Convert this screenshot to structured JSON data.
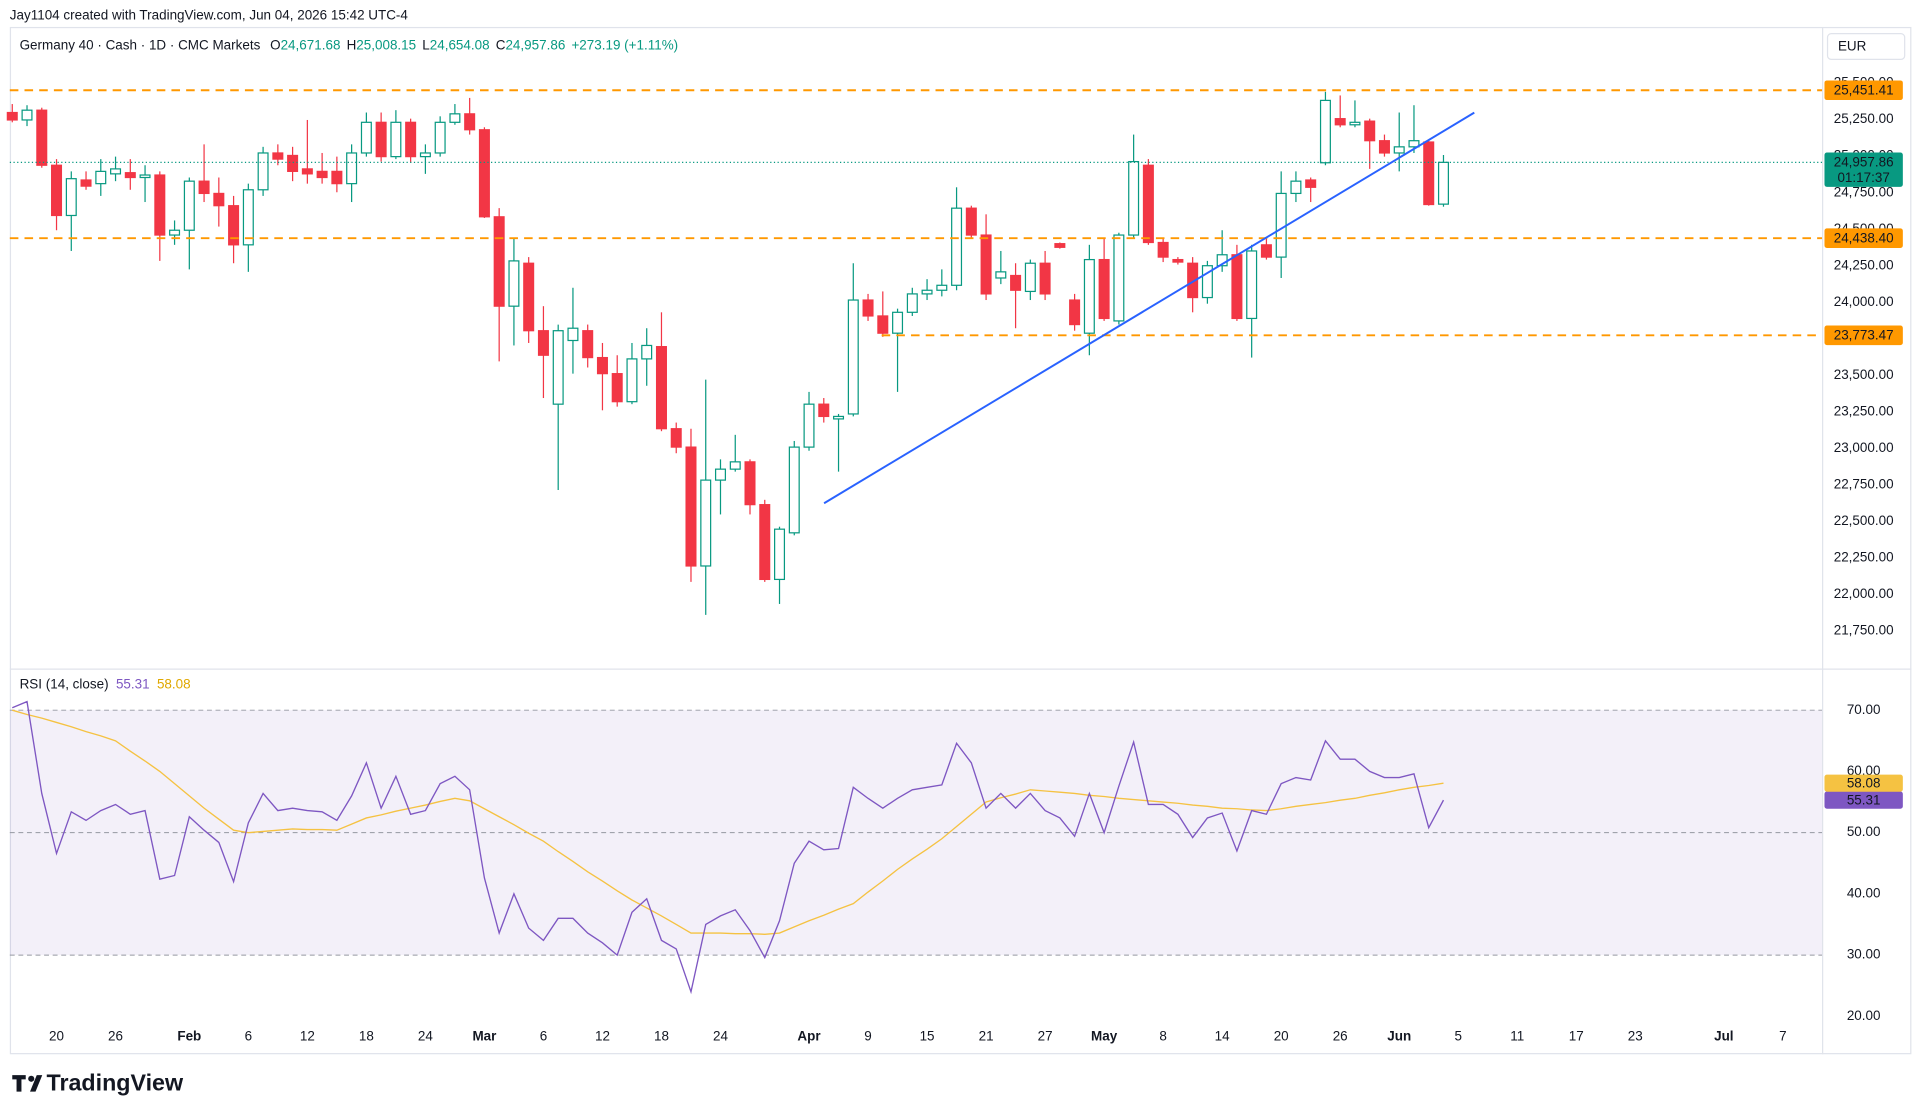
{
  "header": {
    "credit": "Jay1104 created with TradingView.com, Jun 04, 2026 15:42 UTC-4",
    "symbol": "Germany 40 · Cash · 1D · CMC Markets",
    "ohlc": [
      {
        "key": "O",
        "value": "24,671.68"
      },
      {
        "key": "H",
        "value": "25,008.15"
      },
      {
        "key": "L",
        "value": "24,654.08"
      },
      {
        "key": "C",
        "value": "24,957.86"
      }
    ],
    "change": "+273.19 (+1.11%)",
    "currency": "EUR"
  },
  "price_lines": [
    {
      "value": 25451.41,
      "label": "25,451.41",
      "color": "#ff9800"
    },
    {
      "value": 24438.4,
      "label": "24,438.40",
      "color": "#ff9800"
    },
    {
      "value": 23773.47,
      "label": "23,773.47",
      "color": "#ff9800"
    }
  ],
  "last_price": {
    "value": 24957.86,
    "label": "24,957.86",
    "countdown": "01:17:37",
    "color": "#089981"
  },
  "brand": "TradingView",
  "chart_data": [
    {
      "type": "candlestick",
      "categories": [
        null,
        null,
        null,
        "20",
        null,
        null,
        null,
        "26",
        null,
        null,
        null,
        null,
        "Feb",
        null,
        null,
        null,
        "6",
        null,
        null,
        null,
        "12",
        null,
        null,
        null,
        "18",
        null,
        null,
        null,
        "24",
        null,
        null,
        null,
        "Mar",
        null,
        null,
        null,
        "6",
        null,
        null,
        null,
        "12",
        null,
        null,
        null,
        "18",
        null,
        null,
        null,
        "24",
        null,
        null,
        null,
        null,
        null,
        "Apr",
        null,
        null,
        null,
        "9",
        null,
        null,
        null,
        "15",
        null,
        null,
        null,
        "21",
        null,
        null,
        null,
        "27",
        null,
        null,
        null,
        "May",
        null,
        null,
        null,
        "8",
        null,
        null,
        null,
        "14",
        null,
        null,
        null,
        "20",
        null,
        null,
        null,
        "26",
        null,
        null,
        null,
        "Jun",
        null,
        null,
        null,
        "5",
        null,
        null,
        null,
        "11",
        null,
        null,
        null,
        "17",
        null,
        null,
        null,
        "23",
        null,
        null,
        null,
        null,
        null,
        "Jul",
        null,
        null,
        null,
        "7",
        null,
        null
      ],
      "open": [
        25299,
        25248,
        25315,
        24938,
        24594,
        24837,
        24812,
        24879,
        24887,
        24854,
        24871,
        24460,
        24493,
        24829,
        24745,
        24661,
        24393,
        24770,
        25022,
        25005,
        24913,
        24896,
        24896,
        24812,
        25022,
        25232,
        24997,
        25232,
        24997,
        25022,
        25232,
        25290,
        25181,
        24585,
        23973,
        24267,
        23805,
        23302,
        23738,
        23805,
        23621,
        23511,
        23319,
        23612,
        23696,
        23134,
        23008,
        22194,
        22782,
        22857,
        22907,
        22614,
        22102,
        22421,
        23008,
        23302,
        23201,
        23235,
        24015,
        23906,
        23788,
        23931,
        24057,
        24082,
        24116,
        24644,
        24460,
        24166,
        24183,
        24074,
        24267,
        24401,
        24015,
        23788,
        24292,
        23872,
        24460,
        24938,
        24409,
        24292,
        24267,
        24032,
        24250,
        24325,
        23889,
        24393,
        24309,
        24745,
        24837,
        24955,
        25257,
        25215,
        25240,
        25106,
        25022,
        25064,
        25097,
        24671.68,
        null,
        null,
        null,
        null,
        null,
        null,
        null,
        null,
        null,
        null,
        null,
        null,
        null,
        null,
        null,
        null,
        null,
        null,
        null,
        null,
        null,
        null,
        null,
        null,
        null
      ],
      "high": [
        25357,
        25349,
        25332,
        24980,
        24896,
        24896,
        24980,
        24997,
        24980,
        24938,
        24896,
        24560,
        24854,
        25081,
        24854,
        24728,
        24812,
        25064,
        25081,
        25064,
        25248,
        25022,
        24997,
        25081,
        25299,
        25299,
        25315,
        25257,
        25081,
        25273,
        25357,
        25399,
        25198,
        24644,
        24434,
        24309,
        23973,
        23847,
        24099,
        23847,
        23721,
        23637,
        23721,
        23822,
        23931,
        23176,
        23134,
        23470,
        22924,
        23092,
        22924,
        22647,
        22463,
        23050,
        23386,
        23344,
        23235,
        24267,
        24057,
        24074,
        23956,
        24099,
        24158,
        24225,
        24787,
        24661,
        24602,
        24351,
        24267,
        24292,
        24351,
        24409,
        24057,
        24393,
        24434,
        24476,
        25148,
        24980,
        24434,
        24309,
        24309,
        24283,
        24493,
        24393,
        24393,
        24434,
        24896,
        24896,
        24854,
        25441,
        25416,
        25382,
        25257,
        25148,
        25299,
        25349,
        25114,
        25008.15,
        null,
        null,
        null,
        null,
        null,
        null,
        null,
        null,
        null,
        null,
        null,
        null,
        null,
        null,
        null,
        null,
        null,
        null,
        null,
        null,
        null,
        null,
        null,
        null,
        null
      ],
      "low": [
        25232,
        25206,
        24921,
        24493,
        24351,
        24770,
        24728,
        24829,
        24770,
        24686,
        24283,
        24393,
        24225,
        24686,
        24518,
        24267,
        24208,
        24728,
        24938,
        24829,
        24812,
        24812,
        24753,
        24686,
        24997,
        24963,
        24980,
        24955,
        24879,
        24997,
        25215,
        25148,
        24577,
        23595,
        23704,
        23721,
        23344,
        22714,
        23511,
        23553,
        23260,
        23285,
        23302,
        23428,
        23117,
        22966,
        22085,
        21859,
        22547,
        22840,
        22547,
        22085,
        21934,
        22404,
        22983,
        23176,
        22840,
        23218,
        23872,
        23763,
        23386,
        23906,
        24015,
        24040,
        24082,
        24434,
        24015,
        24124,
        23822,
        24015,
        24015,
        24367,
        23805,
        23637,
        23872,
        23847,
        24434,
        24393,
        24275,
        24258,
        23931,
        23990,
        24208,
        23872,
        23621,
        24292,
        24166,
        24686,
        24686,
        24938,
        25198,
        25198,
        24913,
        24997,
        24896,
        25022,
        24661,
        24654.08,
        null,
        null,
        null,
        null,
        null,
        null,
        null,
        null,
        null,
        null,
        null,
        null,
        null,
        null,
        null,
        null,
        null,
        null,
        null,
        null,
        null,
        null,
        null,
        null,
        null
      ],
      "close": [
        25248,
        25315,
        24938,
        24594,
        24846,
        24795,
        24896,
        24913,
        24854,
        24871,
        24460,
        24493,
        24829,
        24745,
        24661,
        24393,
        24770,
        25022,
        24980,
        24896,
        24879,
        24854,
        24812,
        25022,
        25232,
        24997,
        25232,
        24997,
        25022,
        25232,
        25290,
        25181,
        24585,
        23973,
        24283,
        23805,
        23637,
        23805,
        23822,
        23621,
        23511,
        23319,
        23612,
        23704,
        23134,
        23008,
        22194,
        22782,
        22857,
        22907,
        22614,
        22102,
        22446,
        23008,
        23302,
        23218,
        23218,
        24015,
        23906,
        23788,
        23931,
        24057,
        24082,
        24116,
        24644,
        24460,
        24057,
        24208,
        24082,
        24267,
        24057,
        24376,
        23847,
        24292,
        23889,
        24460,
        24963,
        24409,
        24309,
        24275,
        24032,
        24250,
        24325,
        23889,
        24351,
        24309,
        24745,
        24829,
        24787,
        25382,
        25215,
        25232,
        25106,
        25022,
        25064,
        25106,
        24669,
        24957.86,
        null,
        null,
        null,
        null,
        null,
        null,
        null,
        null,
        null,
        null,
        null,
        null,
        null,
        null,
        null,
        null,
        null,
        null,
        null,
        null,
        null,
        null,
        null,
        null,
        null
      ],
      "up_color": "#089981",
      "down_color": "#f23645",
      "ylim": [
        21500,
        25885
      ],
      "yticks": [
        {
          "value": 25500,
          "label": "25,500.00"
        },
        {
          "value": 25250,
          "label": "25,250.00"
        },
        {
          "value": 25000,
          "label": "25,000.00"
        },
        {
          "value": 24750,
          "label": "24,750.00"
        },
        {
          "value": 24500,
          "label": "24,500.00"
        },
        {
          "value": 24250,
          "label": "24,250.00"
        },
        {
          "value": 24000,
          "label": "24,000.00"
        },
        {
          "value": 23750,
          "label": "23,750.00"
        },
        {
          "value": 23500,
          "label": "23,500.00"
        },
        {
          "value": 23250,
          "label": "23,250.00"
        },
        {
          "value": 23000,
          "label": "23,000.00"
        },
        {
          "value": 22750,
          "label": "22,750.00"
        },
        {
          "value": 22500,
          "label": "22,500.00"
        },
        {
          "value": 22250,
          "label": "22,250.00"
        },
        {
          "value": 22000,
          "label": "22,000.00"
        },
        {
          "value": 21750,
          "label": "21,750.00"
        }
      ],
      "grid": false
    },
    {
      "type": "line",
      "title": "RSI (14, close)",
      "series": [
        {
          "legend_label": "55.31",
          "color": "#7e57c2",
          "values": [
            70.4,
            71.4,
            56.4,
            46.6,
            53.4,
            52,
            53.6,
            54.6,
            53,
            53.6,
            42.4,
            43,
            52.6,
            50.4,
            48.4,
            42,
            51.6,
            56.4,
            53.6,
            54,
            53.6,
            53.4,
            52,
            56,
            61.4,
            54,
            59.2,
            53,
            53.6,
            58,
            59.2,
            57,
            42.6,
            33.6,
            40,
            34.4,
            32.4,
            36,
            36,
            33.6,
            32,
            30,
            37,
            39.2,
            32.4,
            31,
            24,
            35,
            36.4,
            37.4,
            34,
            29.6,
            35.6,
            45,
            48.6,
            47.2,
            47.4,
            57.4,
            55.6,
            54,
            55.6,
            57,
            57.4,
            57.8,
            64.6,
            61.4,
            54,
            56.4,
            54,
            56.4,
            53.6,
            52.4,
            49.4,
            56.4,
            50,
            57.6,
            64.8,
            54.6,
            54.6,
            53,
            49.2,
            52.4,
            53.2,
            47,
            53.6,
            53,
            58,
            59,
            58.6,
            65,
            62,
            62,
            60,
            59,
            59,
            59.6,
            50.8,
            55.31,
            null,
            null,
            null,
            null,
            null,
            null,
            null,
            null,
            null,
            null,
            null,
            null,
            null,
            null,
            null,
            null,
            null,
            null,
            null,
            null,
            null,
            null,
            null,
            null,
            null
          ]
        },
        {
          "legend_label": "58.08",
          "color": "#f5c242",
          "values": [
            70,
            69.3,
            68.7,
            68,
            67.3,
            66.5,
            65.8,
            65,
            63.3,
            61.7,
            60,
            58,
            56,
            54,
            52.2,
            50.4,
            50,
            50.2,
            50.4,
            50.6,
            50.5,
            50.5,
            50.4,
            51.4,
            52.4,
            52.9,
            53.5,
            54,
            54.5,
            55.1,
            55.6,
            55.2,
            53.9,
            52.6,
            51.3,
            49.9,
            48.6,
            46.9,
            45.3,
            43.6,
            42.1,
            40.5,
            39,
            37.7,
            36.4,
            35,
            33.6,
            33.6,
            33.6,
            33.5,
            33.5,
            33.4,
            33.6,
            34.6,
            35.6,
            36.5,
            37.5,
            38.4,
            40.3,
            42.1,
            44,
            45.7,
            47.3,
            49,
            51,
            53,
            55,
            55.7,
            56.3,
            57,
            56.8,
            56.6,
            56.4,
            56.1,
            55.9,
            55.6,
            55.4,
            55.2,
            55,
            54.8,
            54.5,
            54.3,
            54,
            53.9,
            53.7,
            53.6,
            53.9,
            54.3,
            54.6,
            54.9,
            55.3,
            55.6,
            56.1,
            56.5,
            57,
            57.4,
            57.7,
            58.08,
            null,
            null,
            null,
            null,
            null,
            null,
            null,
            null,
            null,
            null,
            null,
            null,
            null,
            null,
            null,
            null,
            null,
            null,
            null,
            null,
            null,
            null,
            null,
            null,
            null
          ]
        }
      ],
      "levels": [
        70,
        50,
        30
      ],
      "band_color": "#7e57c2",
      "ylim": [
        14.4,
        76.4
      ],
      "yticks": [
        {
          "value": 70,
          "label": "70.00"
        },
        {
          "value": 60,
          "label": "60.00"
        },
        {
          "value": 50,
          "label": "50.00"
        },
        {
          "value": 40,
          "label": "40.00"
        },
        {
          "value": 30,
          "label": "30.00"
        },
        {
          "value": 20,
          "label": "20.00"
        }
      ]
    }
  ]
}
